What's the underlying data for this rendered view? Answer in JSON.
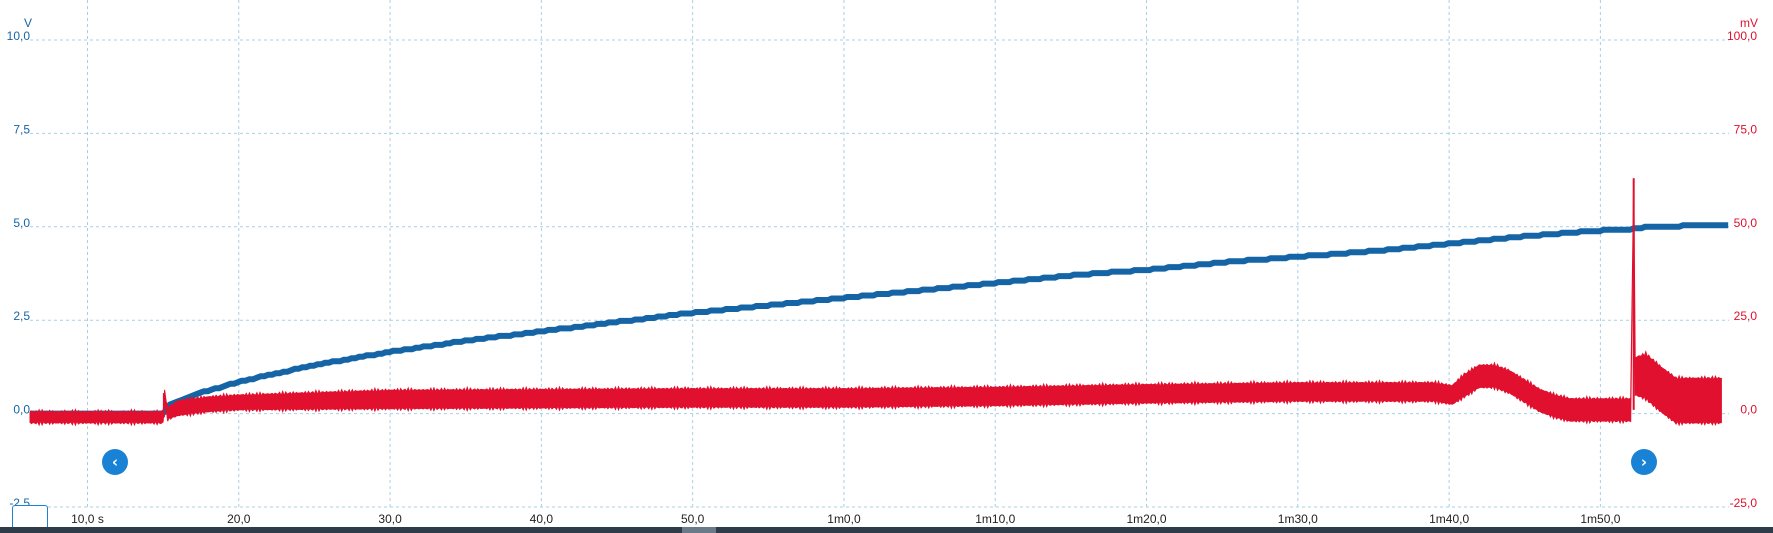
{
  "chart_data": {
    "type": "line",
    "x_unit": "s",
    "x_ticks": [
      {
        "value": 10,
        "label": "10,0 s"
      },
      {
        "value": 20,
        "label": "20,0"
      },
      {
        "value": 30,
        "label": "30,0"
      },
      {
        "value": 40,
        "label": "40,0"
      },
      {
        "value": 50,
        "label": "50,0"
      },
      {
        "value": 60,
        "label": "1m0,0"
      },
      {
        "value": 70,
        "label": "1m10,0"
      },
      {
        "value": 80,
        "label": "1m20,0"
      },
      {
        "value": 90,
        "label": "1m30,0"
      },
      {
        "value": 100,
        "label": "1m40,0"
      },
      {
        "value": 110,
        "label": "1m50,0"
      }
    ],
    "xlim": [
      6.2,
      118.5
    ],
    "left_axis": {
      "unit": "V",
      "ylim": [
        -2.5,
        10.0
      ],
      "ticks": [
        "10,0",
        "7,5",
        "5,0",
        "2,5",
        "0,0",
        "-2,5"
      ],
      "tick_values": [
        10.0,
        7.5,
        5.0,
        2.5,
        0.0,
        -2.5
      ]
    },
    "right_axis": {
      "unit": "mV",
      "ylim": [
        -25.0,
        100.0
      ],
      "ticks": [
        "100,0",
        "75,0",
        "50,0",
        "25,0",
        "0,0",
        "-25,0"
      ],
      "tick_values": [
        100.0,
        75.0,
        50.0,
        25.0,
        0.0,
        -25.0
      ]
    },
    "grid": true,
    "series": [
      {
        "axis": "left",
        "color": "#1565a6",
        "x": [
          6.2,
          15.0,
          15.5,
          17,
          20,
          25,
          30,
          35,
          40,
          45,
          50,
          55,
          60,
          65,
          70,
          75,
          80,
          85,
          90,
          95,
          100,
          105,
          110,
          112.5,
          113.0,
          118.5
        ],
        "y": [
          0.0,
          0.0,
          0.25,
          0.5,
          0.85,
          1.3,
          1.65,
          1.95,
          2.2,
          2.45,
          2.7,
          2.9,
          3.1,
          3.3,
          3.5,
          3.7,
          3.85,
          4.05,
          4.2,
          4.35,
          4.55,
          4.75,
          4.9,
          4.95,
          5.0,
          5.05
        ]
      },
      {
        "axis": "right",
        "color": "#e0102e",
        "x": [
          6.2,
          15.0,
          15.05,
          15.3,
          16,
          18,
          20,
          30,
          40,
          50,
          60,
          70,
          80,
          90,
          99,
          100.2,
          101,
          102,
          103,
          104,
          105,
          106,
          107,
          108,
          110,
          112,
          112.2,
          112.25,
          112.3,
          113,
          114,
          115,
          118
        ],
        "y": [
          -1,
          -1,
          5.5,
          0,
          1.5,
          2.5,
          3.0,
          3.8,
          4.0,
          4.2,
          4.2,
          4.6,
          5.3,
          5.8,
          5.8,
          5.0,
          7.5,
          10.0,
          10.0,
          8.5,
          6.0,
          3.5,
          2.0,
          1.0,
          1.0,
          1.0,
          63.0,
          1.0,
          10.0,
          10.0,
          6.5,
          3.5,
          3.5
        ],
        "band": [
          1.5,
          1.5,
          1.5,
          1.5,
          2.0,
          2.0,
          2.0,
          2.5,
          2.5,
          2.5,
          2.5,
          2.5,
          2.5,
          2.5,
          2.5,
          2.5,
          3.0,
          3.0,
          3.0,
          3.0,
          3.0,
          3.0,
          3.0,
          3.0,
          3.0,
          3.0,
          0.0,
          3.0,
          5.0,
          6.0,
          6.0,
          6.0,
          6.0
        ]
      }
    ]
  },
  "controls": {
    "nav_left_glyph": "‹",
    "nav_right_glyph": "›"
  }
}
